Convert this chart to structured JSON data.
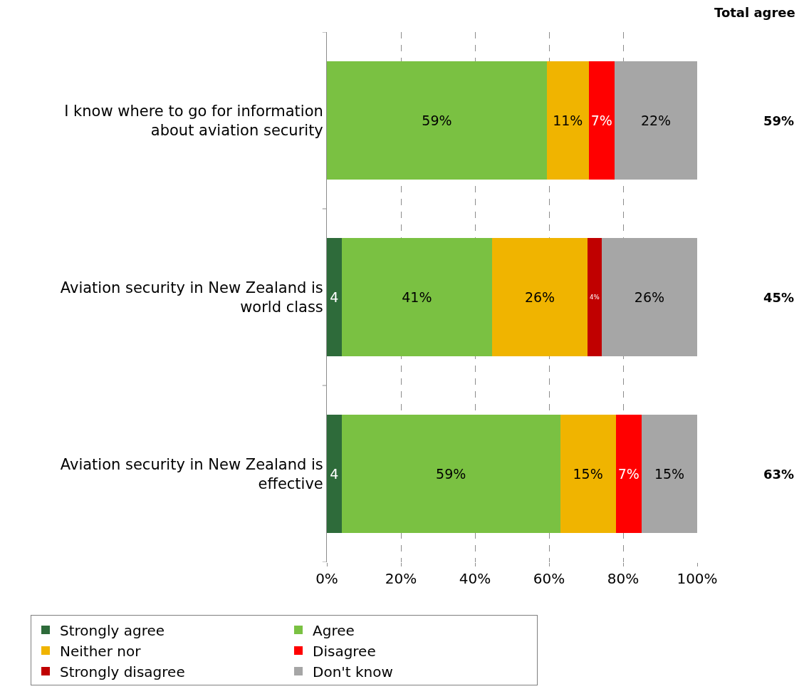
{
  "chart_data": {
    "type": "bar",
    "orientation": "horizontal",
    "stacked": true,
    "categories": [
      "I know where to go for information about aviation security",
      "Aviation security in New Zealand is world class",
      "Aviation security in New Zealand is effective"
    ],
    "series": [
      {
        "name": "Strongly agree",
        "color": "#2e6b3a",
        "values": [
          null,
          4.0,
          4.0
        ],
        "value_labels": [
          null,
          "4",
          "4"
        ]
      },
      {
        "name": "Agree",
        "color": "#7ac142",
        "values": [
          59.4,
          40.6,
          59.0
        ],
        "value_labels": [
          "59%",
          "41%",
          "59%"
        ]
      },
      {
        "name": "Neither nor",
        "color": "#f0b400",
        "values": [
          11.3,
          25.8,
          15.0
        ],
        "value_labels": [
          "11%",
          "26%",
          "15%"
        ]
      },
      {
        "name": "Disagree",
        "color": "#ff0000",
        "values": [
          7.0,
          null,
          7.0
        ],
        "value_labels": [
          "7%",
          null,
          "7%"
        ]
      },
      {
        "name": "Strongly disagree",
        "color": "#c00000",
        "values": [
          null,
          3.8,
          null
        ],
        "value_labels": [
          null,
          "4%",
          null
        ]
      },
      {
        "name": "Don't know",
        "color": "#a6a6a6",
        "values": [
          22.3,
          25.8,
          15.0
        ],
        "value_labels": [
          "22%",
          "26%",
          "15%"
        ]
      }
    ],
    "xlim": [
      0,
      100
    ],
    "xticks": [
      {
        "value": 0,
        "label": "0%"
      },
      {
        "value": 20,
        "label": "20%"
      },
      {
        "value": 40,
        "label": "40%"
      },
      {
        "value": 60,
        "label": "60%"
      },
      {
        "value": 80,
        "label": "80%"
      },
      {
        "value": 100,
        "label": "100%"
      }
    ],
    "grid": "x",
    "legend": "bottom",
    "annotations": [
      "Total agree",
      "59%",
      "45%",
      "63%"
    ]
  }
}
